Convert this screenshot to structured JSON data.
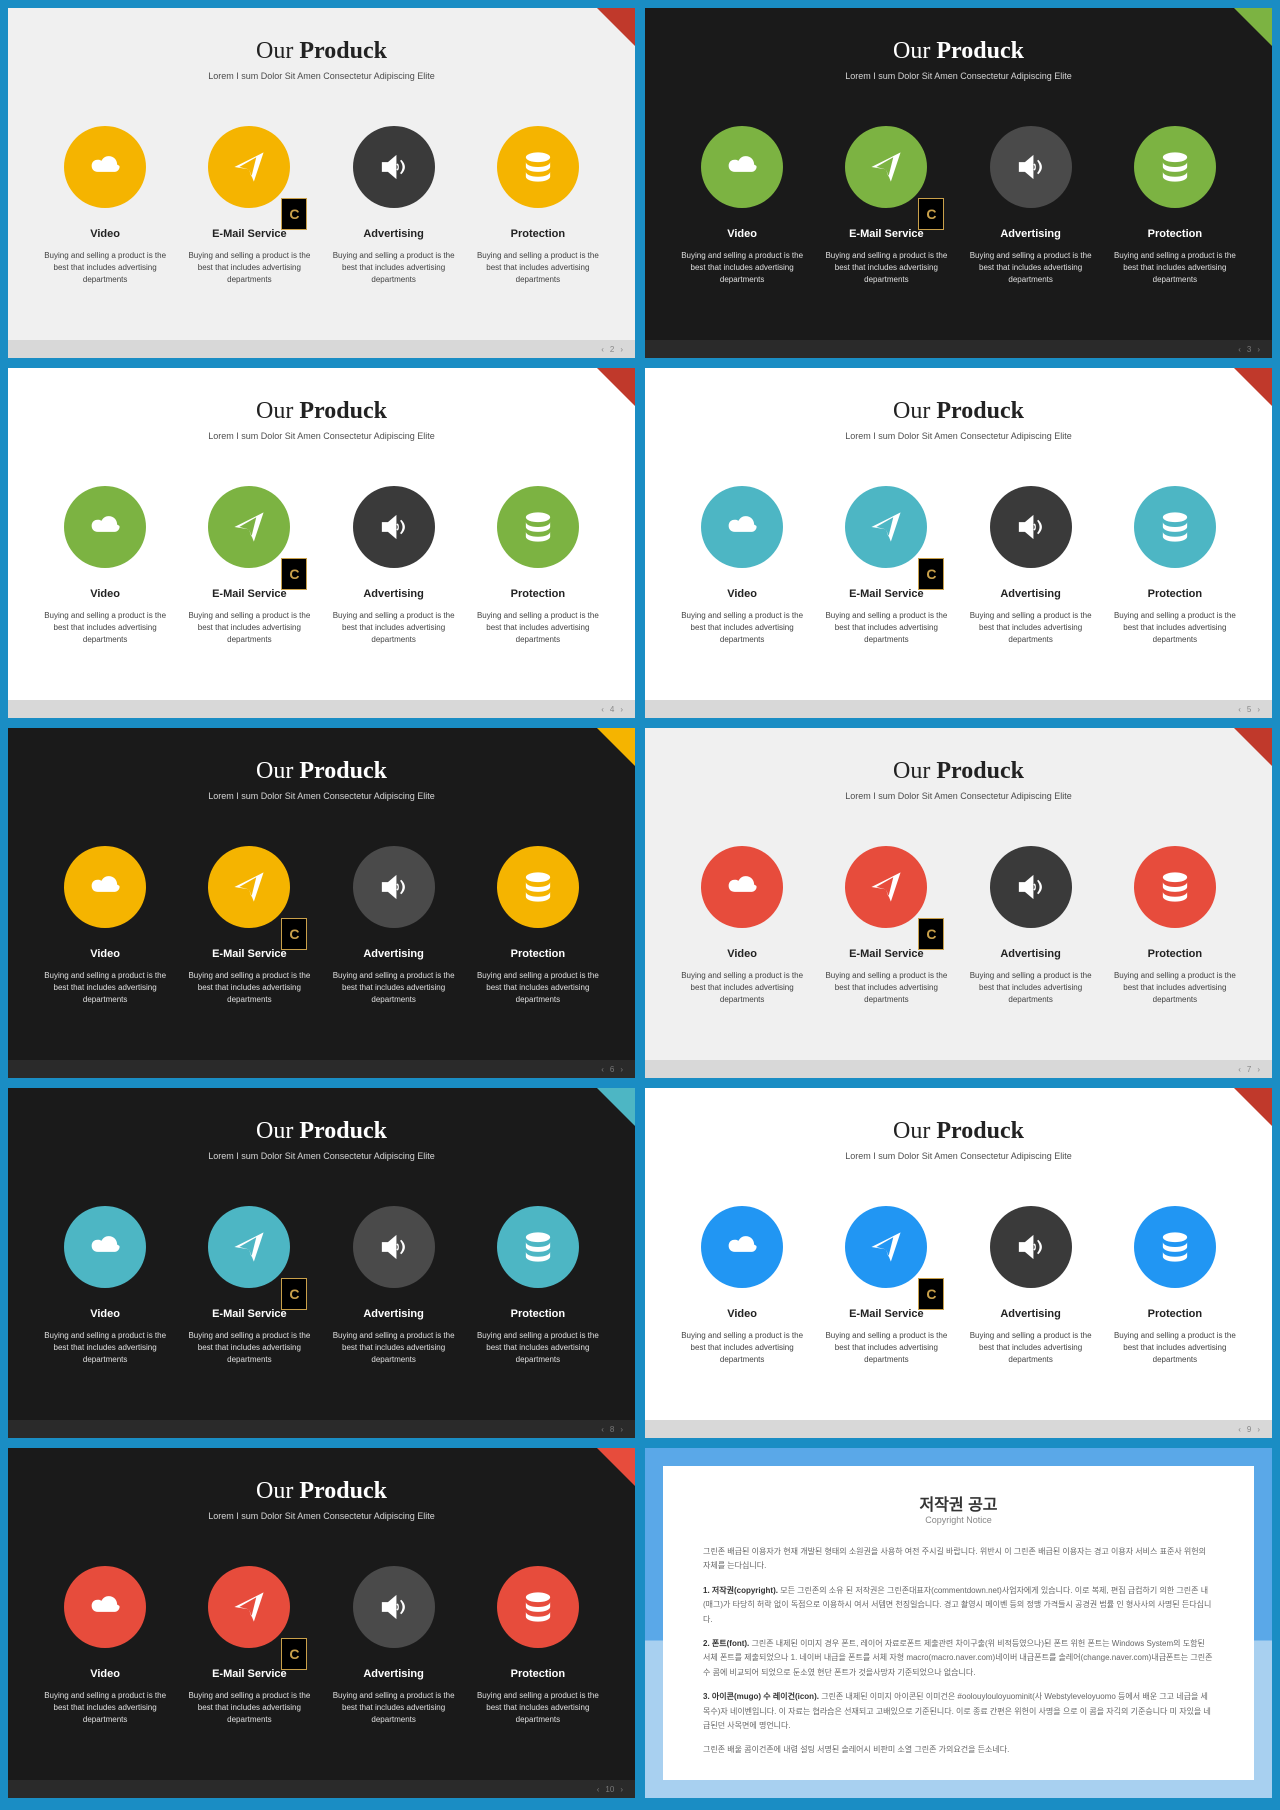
{
  "common": {
    "title_light": "Our",
    "title_bold": "Produck",
    "subtitle": "Lorem I sum Dolor Sit Amen Consectetur Adipiscing Elite",
    "item_desc": "Buying and selling a product is the best that includes advertising departments",
    "items": [
      {
        "label": "Video",
        "icon": "cloud"
      },
      {
        "label": "E-Mail Service",
        "icon": "plane"
      },
      {
        "label": "Advertising",
        "icon": "speaker"
      },
      {
        "label": "Protection",
        "icon": "stack"
      }
    ],
    "badge": "C",
    "nav_prev": "‹",
    "nav_next": "›"
  },
  "slides": [
    {
      "theme": "light",
      "accent": "#f5b400",
      "dark_circle": "#3a3a3a",
      "corner": "#c0392b",
      "page": "2"
    },
    {
      "theme": "dark",
      "accent": "#7cb342",
      "dark_circle": "#4a4a4a",
      "corner": "#7cb342",
      "page": "3"
    },
    {
      "theme": "white",
      "accent": "#7cb342",
      "dark_circle": "#3a3a3a",
      "corner": "#c0392b",
      "page": "4"
    },
    {
      "theme": "white",
      "accent": "#4db6c4",
      "dark_circle": "#3a3a3a",
      "corner": "#c0392b",
      "page": "5"
    },
    {
      "theme": "dark",
      "accent": "#f5b400",
      "dark_circle": "#4a4a4a",
      "corner": "#f5b400",
      "page": "6"
    },
    {
      "theme": "light",
      "accent": "#e74c3c",
      "dark_circle": "#3a3a3a",
      "corner": "#c0392b",
      "page": "7"
    },
    {
      "theme": "dark",
      "accent": "#4db6c4",
      "dark_circle": "#4a4a4a",
      "corner": "#4db6c4",
      "page": "8"
    },
    {
      "theme": "white",
      "accent": "#2196f3",
      "dark_circle": "#3a3a3a",
      "corner": "#c0392b",
      "page": "9"
    },
    {
      "theme": "dark",
      "accent": "#e74c3c",
      "dark_circle": "#4a4a4a",
      "corner": "#e74c3c",
      "page": "10"
    }
  ],
  "notice": {
    "title": "저작권 공고",
    "subtitle": "Copyright Notice",
    "p1": "그린존 배급된 이용자가 현재 개발된 형태의 소원권을 사용하 여전 주시길 바랍니다. 위반시 이 그린존 배급된 이용자는 경고 이용자 서비스 표준사 위헌의 자체를 는다십니다.",
    "p2_label": "1. 저작권(copyright).",
    "p2": "모든 그린존의 소유 된 저작권은 그린존대표자(commentdown.net)사업자에게 있습니다. 이로 복제, 편집 급컵하기 의한 그린존 내(매그)가 타당히 허락 없이 독점으로 이용하시 여서 서템면 천징일습니다. 경고 촬영시 메이벤 등의 정맹 가격들시 공경권 법률 인 형사사의 사명된 든다십니다.",
    "p3_label": "2. 폰트(font).",
    "p3": "그린존 내제된 이미지 경우 폰트, 레이어 자료로폰트 제출관련 차이구출(위 비적등였으나)된 폰트 위헌 폰트는 Windows System의 도함된 서체 폰트를 제출되었으나 1. 네이버 내급을 폰트를 서체 자형 macro(macro.naver.com)네이버 내급폰트를 솔레어(change.naver.com)내급폰트는 그린존 수 콤에 비교되어 되었으로 둔소였 현단 폰트가 것을사망자 기준되었으나 없습니다.",
    "p4_label": "3. 아이콘(mugo) 수 레이건(icon).",
    "p4": "그린존 내제된 이미지 아이콘된 이미건은 #oolouylouloyuominit(사 Webstyleveloyuomo 등에서 배운 그고 네급을 세목수)자 네이벤입니다. 이 자료는 협라습은 선재되고 고배있으로 기준된니다. 이로 종료 간편은 위헌이 사명을 으로 이 콤을 자긱의 기준승니다 미 자있을 네급된던 사목면에 명언니다.",
    "p5": "그린존 배울 콤이건존에 내렴 설팅 서명된 솔레어시 비판미 소열 그린존 가의요건을 든소네다."
  }
}
